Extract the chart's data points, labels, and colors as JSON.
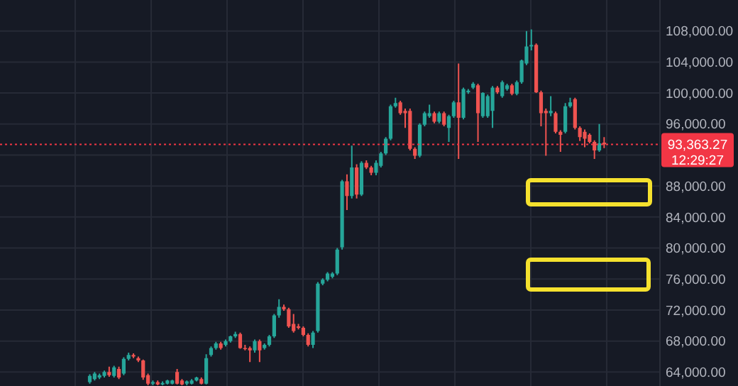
{
  "chart_data": {
    "type": "candlestick",
    "categories": [
      null,
      null,
      null,
      null,
      null,
      null,
      null,
      null,
      null,
      null,
      null,
      null,
      null,
      null,
      null,
      null,
      null,
      null,
      null,
      null,
      null,
      null,
      null,
      null,
      null,
      null,
      null,
      null,
      null,
      null,
      null,
      null,
      null,
      null,
      null,
      null,
      null,
      null,
      null,
      null,
      null,
      null,
      null,
      null,
      null,
      null,
      null,
      null,
      null,
      null,
      null,
      null,
      null,
      null,
      null,
      null,
      null,
      null,
      null,
      null,
      null,
      null,
      null,
      null,
      null,
      null,
      null,
      null,
      null,
      null,
      null,
      null,
      null,
      null,
      null,
      null,
      null,
      null,
      null,
      null,
      null,
      null,
      null,
      null,
      null,
      null,
      null,
      null,
      null,
      null,
      null,
      null,
      null,
      null,
      null,
      null,
      null,
      null,
      null,
      null,
      null,
      null,
      null,
      null,
      null,
      null,
      null,
      null,
      null,
      null,
      null,
      null,
      null,
      null,
      null,
      null,
      null,
      null,
      null,
      null,
      null,
      null,
      null,
      null,
      null,
      null,
      null,
      null,
      null,
      null,
      null,
      null,
      null,
      null,
      null,
      null
    ],
    "ohlc": [
      null,
      null,
      null,
      null,
      null,
      null,
      null,
      null,
      null,
      null,
      null,
      null,
      null,
      null,
      null,
      null,
      null,
      null,
      [
        62700,
        63700,
        62500,
        63500
      ],
      [
        63100,
        64000,
        62900,
        63800
      ],
      [
        63300,
        63800,
        63100,
        63600
      ],
      [
        63500,
        64200,
        63300,
        64000
      ],
      [
        64000,
        64700,
        63400,
        63600
      ],
      [
        63500,
        64800,
        63300,
        64600
      ],
      [
        64400,
        64700,
        63100,
        63300
      ],
      [
        63800,
        65900,
        63600,
        65700
      ],
      [
        65700,
        66500,
        65500,
        66200
      ],
      [
        66200,
        66400,
        65800,
        66000
      ],
      [
        65800,
        66000,
        65300,
        65500
      ],
      [
        65500,
        65600,
        63000,
        63300
      ],
      [
        63600,
        63800,
        62300,
        62500
      ],
      [
        62500,
        62900,
        62300,
        62700
      ],
      [
        62700,
        62900,
        62300,
        62400
      ],
      [
        62400,
        62800,
        62300,
        62600
      ],
      [
        62500,
        63000,
        62400,
        62900
      ],
      [
        62500,
        63000,
        62400,
        62900
      ],
      [
        64000,
        64400,
        62400,
        62500
      ],
      [
        62900,
        63100,
        62300,
        62400
      ],
      [
        62500,
        62900,
        62300,
        62800
      ],
      [
        62500,
        63100,
        62400,
        62900
      ],
      [
        62900,
        63400,
        62800,
        63300
      ],
      [
        63100,
        63300,
        62400,
        62500
      ],
      [
        62500,
        66300,
        62400,
        65800
      ],
      [
        66200,
        67300,
        66000,
        67100
      ],
      [
        67100,
        67900,
        66900,
        67700
      ],
      [
        67700,
        67900,
        66900,
        67100
      ],
      [
        67500,
        68200,
        67300,
        68000
      ],
      [
        68000,
        68700,
        67800,
        68600
      ],
      [
        68600,
        69200,
        68400,
        68900
      ],
      [
        68900,
        69100,
        67000,
        67100
      ],
      [
        67100,
        67500,
        66800,
        67000
      ],
      [
        67100,
        67300,
        65300,
        66800
      ],
      [
        66800,
        68200,
        66500,
        68000
      ],
      [
        68000,
        68200,
        65300,
        66800
      ],
      [
        67100,
        67700,
        66900,
        67500
      ],
      [
        67500,
        68800,
        67300,
        68600
      ],
      [
        68600,
        71500,
        68400,
        71300
      ],
      [
        71300,
        73400,
        71000,
        72400
      ],
      [
        72400,
        72700,
        71900,
        72100
      ],
      [
        72100,
        72300,
        69700,
        69900
      ],
      [
        70200,
        71500,
        69100,
        69300
      ],
      [
        69900,
        70200,
        69500,
        69700
      ],
      [
        69700,
        69900,
        68600,
        68800
      ],
      [
        68800,
        69000,
        67300,
        67500
      ],
      [
        67500,
        69300,
        67100,
        69100
      ],
      [
        69300,
        75600,
        69100,
        75400
      ],
      [
        75400,
        76100,
        75200,
        75900
      ],
      [
        75900,
        76900,
        75700,
        76700
      ],
      [
        76300,
        76900,
        76100,
        76700
      ],
      [
        76700,
        80000,
        76500,
        79800
      ],
      [
        80100,
        88800,
        79800,
        88600
      ],
      [
        88600,
        89500,
        84900,
        86700
      ],
      [
        86700,
        93200,
        86400,
        90400
      ],
      [
        90400,
        90800,
        86400,
        86900
      ],
      [
        86900,
        91200,
        86700,
        91000
      ],
      [
        91000,
        91300,
        90200,
        90400
      ],
      [
        90400,
        90600,
        89400,
        89700
      ],
      [
        89700,
        91300,
        89400,
        91000
      ],
      [
        90600,
        92400,
        90400,
        92200
      ],
      [
        92200,
        94300,
        92000,
        94100
      ],
      [
        94100,
        98500,
        93900,
        98300
      ],
      [
        98300,
        99400,
        98100,
        98700
      ],
      [
        98800,
        99000,
        97200,
        97400
      ],
      [
        97700,
        98000,
        95500,
        97400
      ],
      [
        97700,
        98000,
        92600,
        92800
      ],
      [
        92800,
        93000,
        91500,
        91900
      ],
      [
        91900,
        96100,
        91700,
        95900
      ],
      [
        95900,
        97600,
        95700,
        97400
      ],
      [
        97000,
        98500,
        96800,
        97400
      ],
      [
        97400,
        97600,
        96100,
        96300
      ],
      [
        96300,
        97600,
        96100,
        97400
      ],
      [
        97400,
        97600,
        95700,
        95900
      ],
      [
        95500,
        97200,
        93700,
        97000
      ],
      [
        97000,
        99000,
        96800,
        98800
      ],
      [
        98800,
        103800,
        91500,
        96800
      ],
      [
        96800,
        100700,
        96600,
        100500
      ],
      [
        100100,
        100500,
        99900,
        100300
      ],
      [
        100700,
        101400,
        100500,
        101200
      ],
      [
        101000,
        101200,
        93700,
        97400
      ],
      [
        97000,
        100100,
        96800,
        100000
      ],
      [
        97000,
        99800,
        96800,
        99600
      ],
      [
        97700,
        100900,
        95500,
        100700
      ],
      [
        100700,
        100900,
        99900,
        100100
      ],
      [
        99600,
        101600,
        99400,
        101400
      ],
      [
        100500,
        101200,
        100300,
        101000
      ],
      [
        101000,
        101200,
        99700,
        99900
      ],
      [
        99900,
        101600,
        99700,
        101400
      ],
      [
        101400,
        104300,
        101200,
        104200
      ],
      [
        103800,
        108000,
        103600,
        106000
      ],
      [
        106000,
        108200,
        105500,
        106200
      ],
      [
        106200,
        106400,
        100000,
        100100
      ],
      [
        100100,
        100300,
        95700,
        97400
      ],
      [
        97700,
        98000,
        91900,
        97400
      ],
      [
        97400,
        99600,
        97000,
        97700
      ],
      [
        97400,
        97600,
        94800,
        95000
      ],
      [
        95000,
        95200,
        92400,
        94600
      ],
      [
        95000,
        98700,
        94800,
        98300
      ],
      [
        98300,
        99400,
        98100,
        98800
      ],
      [
        99200,
        99400,
        95300,
        95500
      ],
      [
        95500,
        95700,
        93800,
        94300
      ],
      [
        95000,
        95300,
        93000,
        94100
      ],
      [
        94600,
        94800,
        93500,
        93700
      ],
      [
        93700,
        93900,
        91500,
        92600
      ],
      [
        92600,
        96000,
        92400,
        93500
      ],
      [
        93600,
        94300,
        92900,
        93363.27
      ],
      null,
      null,
      null,
      null,
      null,
      null,
      null,
      null,
      null,
      null,
      null
    ],
    "colors": [
      null,
      null,
      null,
      null,
      null,
      null,
      null,
      null,
      null,
      null,
      null,
      null,
      null,
      null,
      null,
      null,
      null,
      null,
      "#26a69a",
      "#26a69a",
      "#26a69a",
      "#26a69a",
      "#ef5350",
      "#26a69a",
      "#ef5350",
      "#26a69a",
      "#26a69a",
      "#ef5350",
      "#ef5350",
      "#ef5350",
      "#ef5350",
      "#26a69a",
      "#ef5350",
      "#26a69a",
      "#26a69a",
      "#26a69a",
      "#ef5350",
      "#ef5350",
      "#26a69a",
      "#26a69a",
      "#26a69a",
      "#ef5350",
      "#26a69a",
      "#26a69a",
      "#26a69a",
      "#ef5350",
      "#26a69a",
      "#26a69a",
      "#26a69a",
      "#ef5350",
      "#ef5350",
      "#ef5350",
      "#26a69a",
      "#ef5350",
      "#26a69a",
      "#26a69a",
      "#26a69a",
      "#26a69a",
      "#ef5350",
      "#ef5350",
      "#ef5350",
      "#ef5350",
      "#ef5350",
      "#ef5350",
      "#26a69a",
      "#26a69a",
      "#26a69a",
      "#26a69a",
      "#26a69a",
      "#26a69a",
      "#26a69a",
      "#ef5350",
      "#26a69a",
      "#ef5350",
      "#26a69a",
      "#ef5350",
      "#ef5350",
      "#26a69a",
      "#26a69a",
      "#26a69a",
      "#26a69a",
      "#26a69a",
      "#ef5350",
      "#ef5350",
      "#ef5350",
      "#ef5350",
      "#26a69a",
      "#26a69a",
      "#26a69a",
      "#ef5350",
      "#26a69a",
      "#ef5350",
      "#26a69a",
      "#26a69a",
      "#ef5350",
      "#26a69a",
      "#26a69a",
      "#26a69a",
      "#ef5350",
      "#26a69a",
      "#26a69a",
      "#26a69a",
      "#ef5350",
      "#26a69a",
      "#26a69a",
      "#ef5350",
      "#26a69a",
      "#26a69a",
      "#26a69a",
      "#26a69a",
      "#ef5350",
      "#ef5350",
      "#ef5350",
      "#26a69a",
      "#ef5350",
      "#ef5350",
      "#26a69a",
      "#26a69a",
      "#ef5350",
      "#ef5350",
      "#ef5350",
      "#ef5350",
      "#ef5350",
      "#26a69a",
      "#ef5350",
      null,
      null,
      null,
      null,
      null,
      null,
      null,
      null,
      null,
      null,
      null
    ],
    "ylim": [
      62200,
      112000
    ],
    "yticks": [
      {
        "value": 64000,
        "label": "64,000.00"
      },
      {
        "value": 68000,
        "label": "68,000.00"
      },
      {
        "value": 72000,
        "label": "72,000.00"
      },
      {
        "value": 76000,
        "label": "76,000.00"
      },
      {
        "value": 80000,
        "label": "80,000.00"
      },
      {
        "value": 84000,
        "label": "84,000.00"
      },
      {
        "value": 88000,
        "label": "88,000.00"
      },
      {
        "value": 92000,
        "label": null
      },
      {
        "value": 96000,
        "label": "96,000.00"
      },
      {
        "value": 100000,
        "label": "100,000.00"
      },
      {
        "value": 104000,
        "label": "104,000.00"
      },
      {
        "value": 108000,
        "label": "108,000.00"
      }
    ],
    "grid": true,
    "ref_lines": [
      {
        "axis": "y",
        "value": 93363.27,
        "label": "93,363.27",
        "color": "#f23645",
        "line_style": "dotted"
      }
    ],
    "annotations": [
      "12:29:27"
    ]
  }
}
